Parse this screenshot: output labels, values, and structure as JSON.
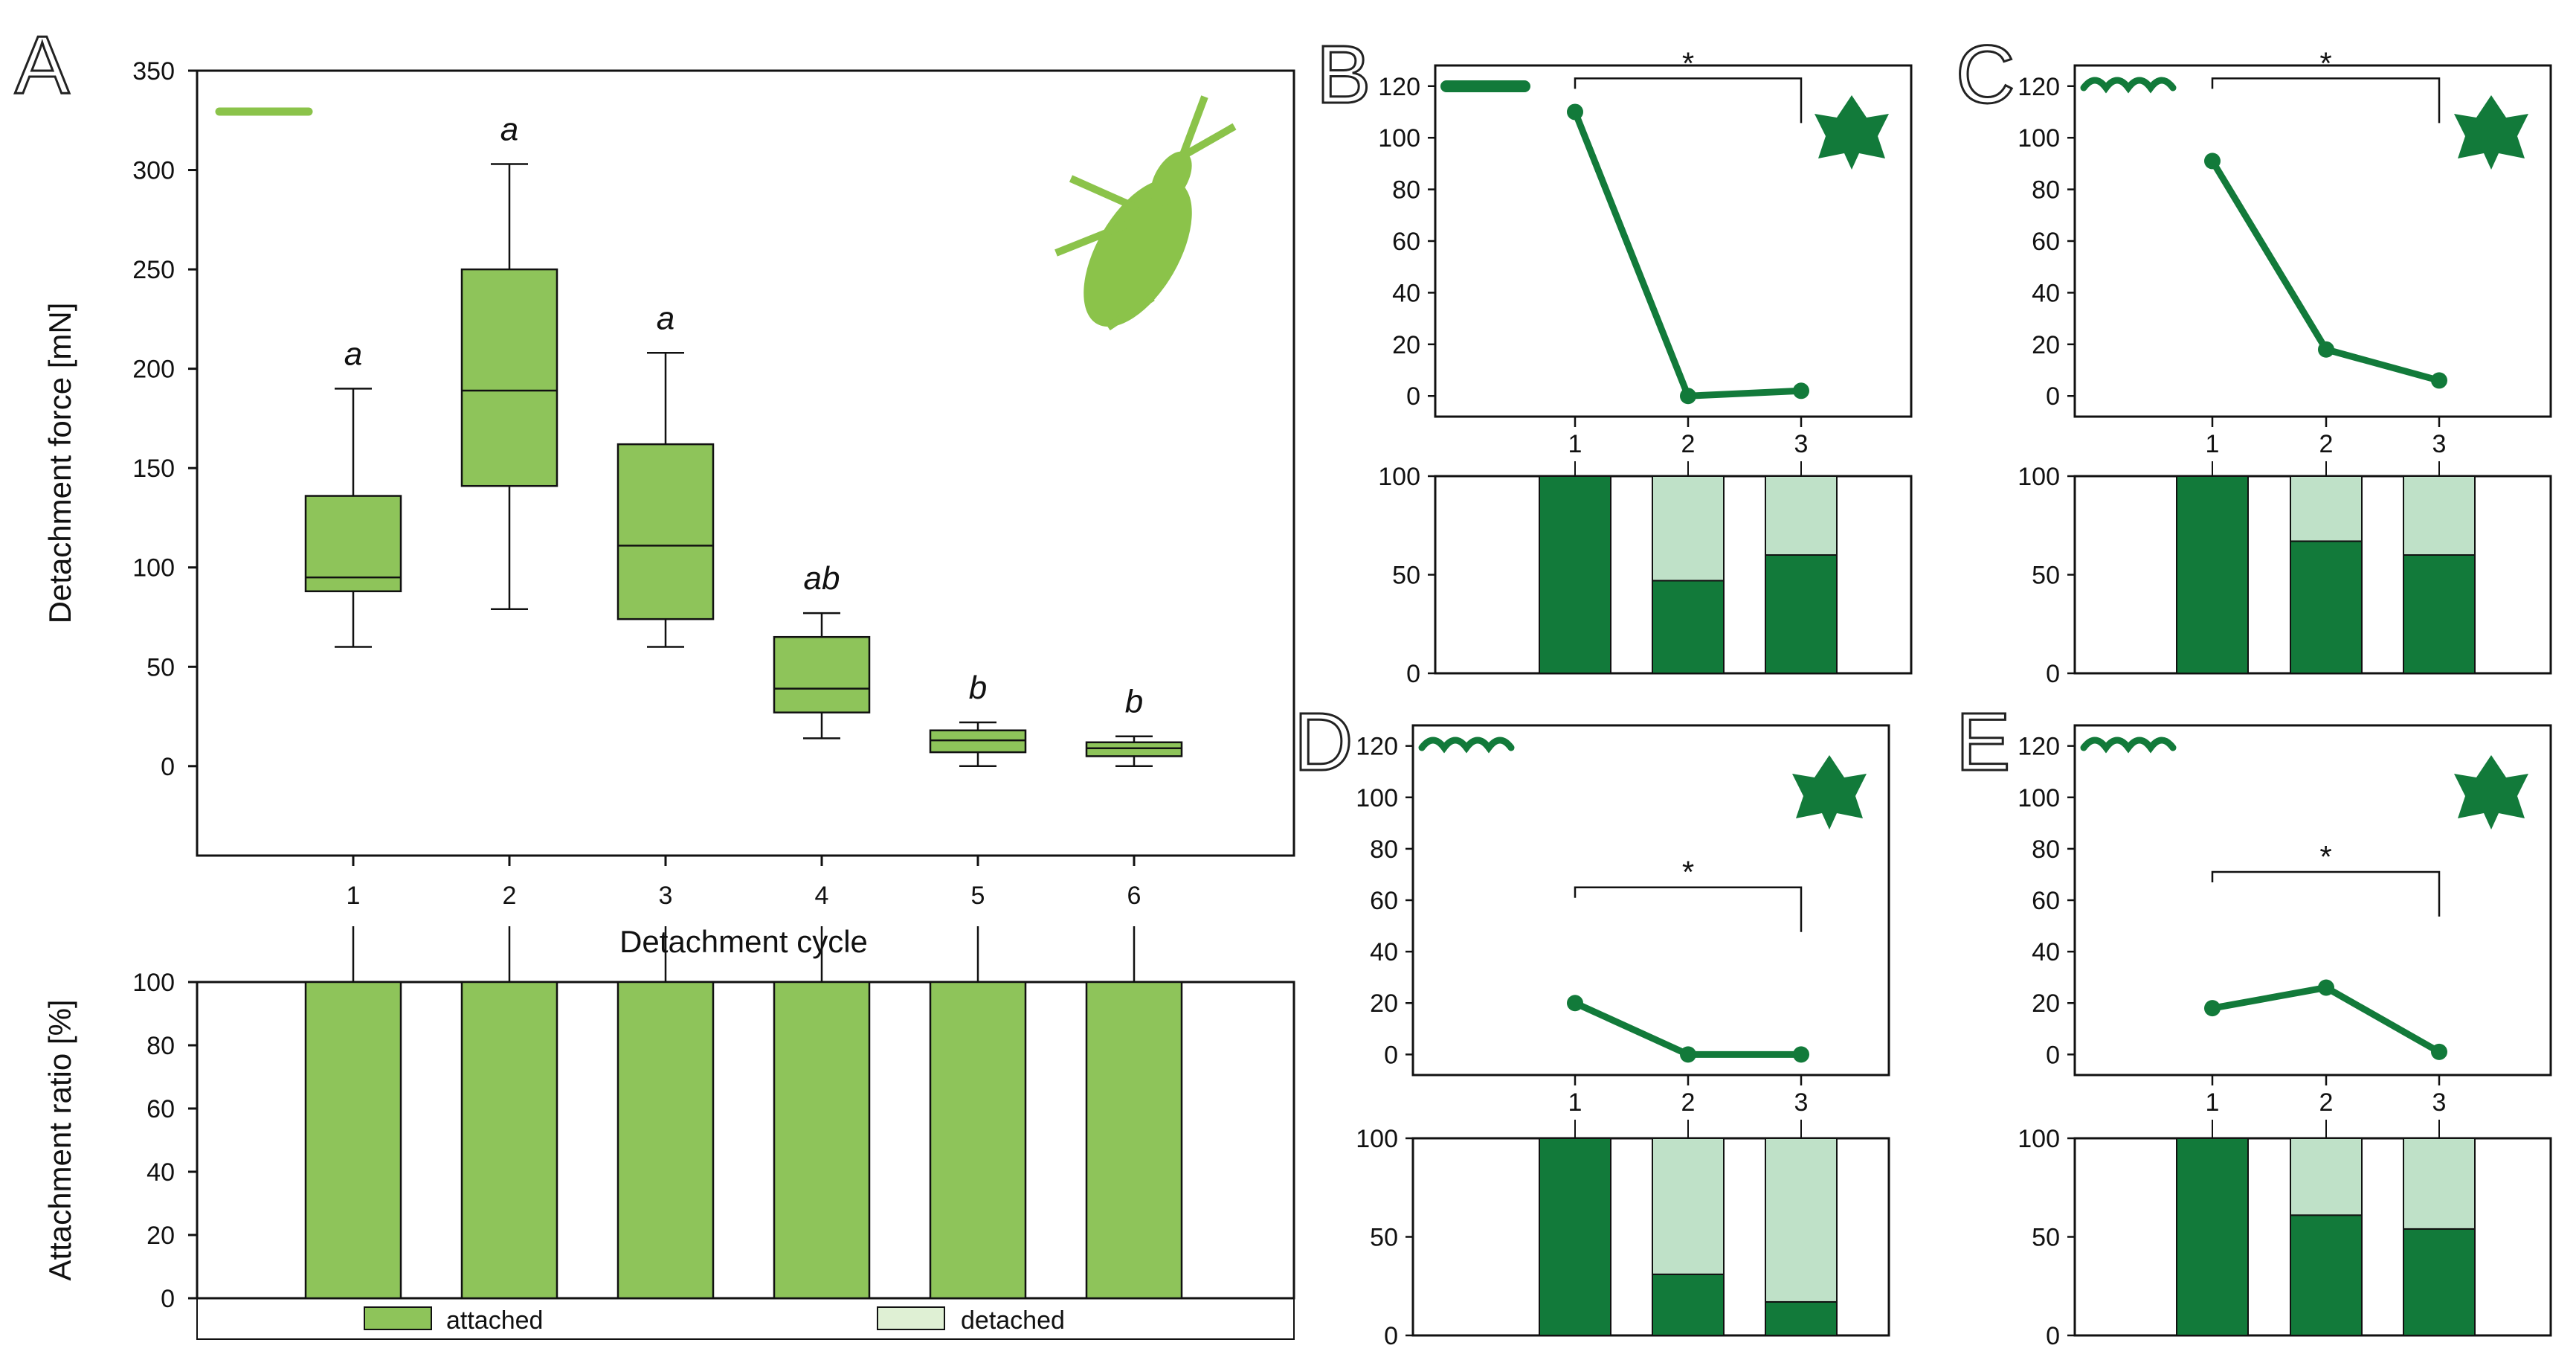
{
  "colors": {
    "light_green": "#8bc34a",
    "box_fill": "#8ec45a",
    "dark_green": "#127a3a",
    "detached_dark": "#bfe1c8",
    "axis": "#111111"
  },
  "icons": {
    "insect": "leaf-insect-icon",
    "leaf": "ivy-leaf-icon"
  },
  "chart_data": [
    {
      "panel": "A",
      "type": "box",
      "ylabel": "Detachment force [mN]",
      "xlabel": "Detachment cycle",
      "categories": [
        "1",
        "2",
        "3",
        "4",
        "5",
        "6"
      ],
      "ylim": [
        -45,
        350
      ],
      "yticks": [
        0,
        50,
        100,
        150,
        200,
        250,
        300,
        350
      ],
      "boxes": [
        {
          "min": 60,
          "q1": 88,
          "median": 95,
          "q3": 136,
          "max": 190
        },
        {
          "min": 79,
          "q1": 141,
          "median": 189,
          "q3": 250,
          "max": 303
        },
        {
          "min": 60,
          "q1": 74,
          "median": 111,
          "q3": 162,
          "max": 208
        },
        {
          "min": 14,
          "q1": 27,
          "median": 39,
          "q3": 65,
          "max": 77
        },
        {
          "min": 0,
          "q1": 7,
          "median": 13,
          "q3": 18,
          "max": 22
        },
        {
          "min": 0,
          "q1": 5,
          "median": 9,
          "q3": 12,
          "max": 15
        }
      ],
      "significance": [
        "a",
        "a",
        "a",
        "ab",
        "b",
        "b"
      ]
    },
    {
      "panel": "A",
      "type": "bar",
      "ylabel": "Attachment ratio [%]",
      "categories": [
        "1",
        "2",
        "3",
        "4",
        "5",
        "6"
      ],
      "ylim": [
        0,
        100
      ],
      "yticks": [
        0,
        20,
        40,
        60,
        80,
        100
      ],
      "series": [
        {
          "name": "attached",
          "values": [
            100,
            100,
            100,
            100,
            100,
            100
          ]
        },
        {
          "name": "detached",
          "values": [
            0,
            0,
            0,
            0,
            0,
            0
          ]
        }
      ],
      "legend": "bottom"
    },
    {
      "panel": "B",
      "type": "line",
      "x": [
        "1",
        "2",
        "3"
      ],
      "y": [
        110,
        0,
        2
      ],
      "ylim": [
        -8,
        128
      ],
      "yticks": [
        0,
        20,
        40,
        60,
        80,
        100,
        120
      ],
      "bracket": {
        "from": "1",
        "to": "3",
        "label": "*"
      },
      "ratio": {
        "attached": [
          100,
          47,
          60
        ],
        "detached": [
          0,
          53,
          40
        ],
        "yticks": [
          0,
          50,
          100
        ]
      }
    },
    {
      "panel": "C",
      "type": "line",
      "x": [
        "1",
        "2",
        "3"
      ],
      "y": [
        91,
        18,
        6
      ],
      "ylim": [
        -8,
        128
      ],
      "yticks": [
        0,
        20,
        40,
        60,
        80,
        100,
        120
      ],
      "bracket": {
        "from": "1",
        "to": "3",
        "label": "*"
      },
      "ratio": {
        "attached": [
          100,
          67,
          60
        ],
        "detached": [
          0,
          33,
          40
        ],
        "yticks": [
          0,
          50,
          100
        ]
      }
    },
    {
      "panel": "D",
      "type": "line",
      "x": [
        "1",
        "2",
        "3"
      ],
      "y": [
        20,
        0,
        0
      ],
      "ylim": [
        -8,
        128
      ],
      "yticks": [
        0,
        20,
        40,
        60,
        80,
        100,
        120
      ],
      "bracket": {
        "from": "1",
        "to": "3",
        "label": "*"
      },
      "ratio": {
        "attached": [
          100,
          31,
          17
        ],
        "detached": [
          0,
          69,
          83
        ],
        "yticks": [
          0,
          50,
          100
        ]
      }
    },
    {
      "panel": "E",
      "type": "line",
      "x": [
        "1",
        "2",
        "3"
      ],
      "y": [
        18,
        26,
        1
      ],
      "ylim": [
        -8,
        128
      ],
      "yticks": [
        0,
        20,
        40,
        60,
        80,
        100,
        120
      ],
      "bracket": {
        "from": "1",
        "to": "3",
        "label": "*"
      },
      "ratio": {
        "attached": [
          100,
          61,
          54
        ],
        "detached": [
          0,
          39,
          46
        ],
        "yticks": [
          0,
          50,
          100
        ]
      }
    }
  ]
}
